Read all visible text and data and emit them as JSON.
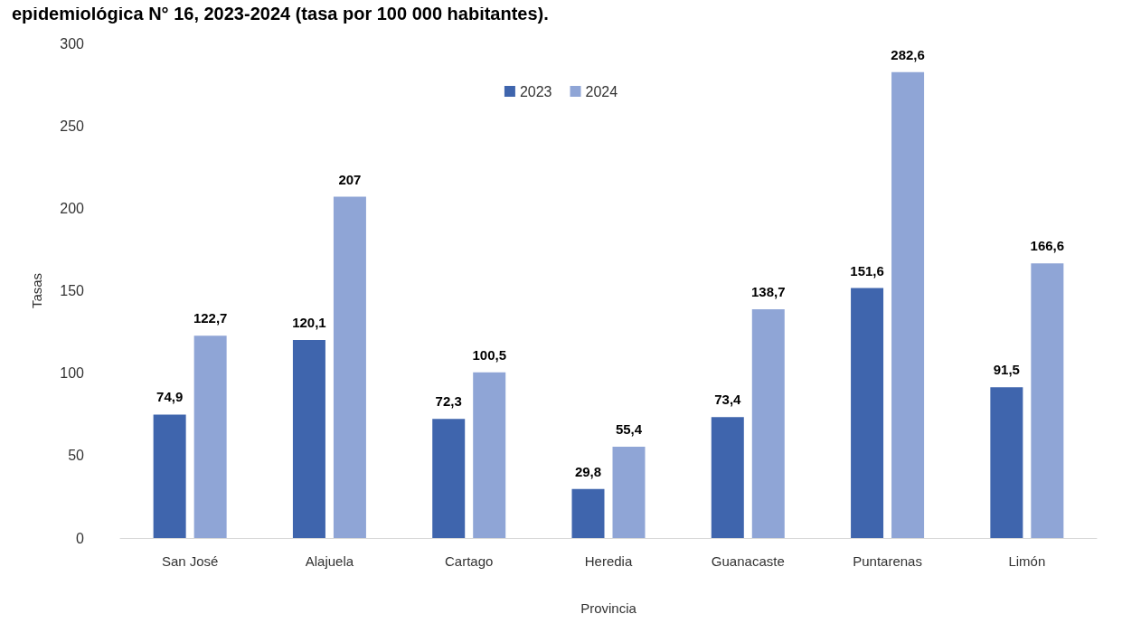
{
  "chart_data": {
    "type": "bar",
    "title": "epidemiológica N° 16, 2023-2024 (tasa por 100 000 habitantes).",
    "xlabel": "Provincia",
    "ylabel": "Tasas",
    "categories": [
      "San José",
      "Alajuela",
      "Cartago",
      "Heredia",
      "Guanacaste",
      "Puntarenas",
      "Limón"
    ],
    "series": [
      {
        "name": "2023",
        "color": "#3f65ad",
        "values": [
          74.9,
          120.1,
          72.3,
          29.8,
          73.4,
          151.6,
          91.5
        ],
        "value_labels": [
          "74,9",
          "120,1",
          "72,3",
          "29,8",
          "73,4",
          "151,6",
          "91,5"
        ]
      },
      {
        "name": "2024",
        "color": "#8fa5d6",
        "values": [
          122.7,
          207,
          100.5,
          55.4,
          138.7,
          282.6,
          166.6
        ],
        "value_labels": [
          "122,7",
          "207",
          "100,5",
          "55,4",
          "138,7",
          "282,6",
          "166,6"
        ]
      }
    ],
    "ylim": [
      0,
      300
    ],
    "yticks": [
      0,
      50,
      100,
      150,
      200,
      250,
      300
    ],
    "grid": false,
    "legend": "top"
  }
}
